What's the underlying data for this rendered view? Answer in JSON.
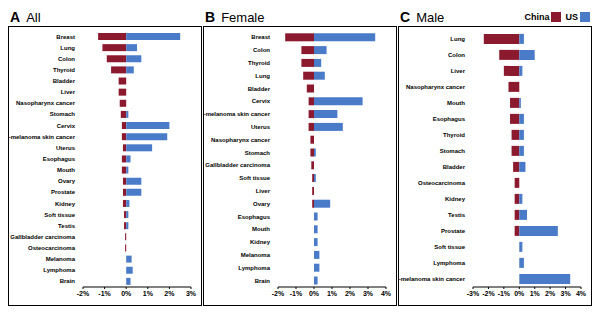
{
  "chart_data": [
    {
      "type": "bar",
      "panel": "A",
      "title": "All",
      "orientation": "horizontal",
      "stacked": true,
      "categories": [
        "Breast",
        "Lung",
        "Colon",
        "Thyroid",
        "Bladder",
        "Liver",
        "Nasopharynx cancer",
        "Stomach",
        "Cervix",
        "non-melanoma skin cancer",
        "Uterus",
        "Esophagus",
        "Mouth",
        "Ovary",
        "Prostate",
        "Kidney",
        "Soft tissue",
        "Testis",
        "Gallbladder carcinoma",
        "Osteocarcinoma",
        "Melanoma",
        "Lymphoma",
        "Brain"
      ],
      "series": [
        {
          "name": "China",
          "color": "#8b1a2e",
          "values": [
            -1.3,
            -1.1,
            -0.9,
            -0.7,
            -0.35,
            -0.35,
            -0.3,
            -0.25,
            -0.2,
            -0.2,
            -0.15,
            -0.2,
            -0.2,
            -0.15,
            -0.15,
            -0.15,
            -0.1,
            -0.1,
            -0.05,
            -0.05,
            0,
            0,
            0
          ]
        },
        {
          "name": "US",
          "color": "#4a7bc8",
          "values": [
            2.5,
            0.5,
            0.7,
            0.35,
            0,
            0,
            0,
            0.1,
            2.0,
            1.9,
            1.2,
            0.2,
            0.1,
            0.7,
            0.7,
            0.15,
            0.1,
            0.1,
            0,
            0,
            0.25,
            0.3,
            0.2
          ]
        }
      ],
      "xlim": [
        -2,
        3
      ],
      "xticks": [
        {
          "value": -2,
          "label": "-2%"
        },
        {
          "value": -1,
          "label": "-1%"
        },
        {
          "value": 0,
          "label": "0%"
        },
        {
          "value": 1,
          "label": "1%"
        },
        {
          "value": 2,
          "label": "2%"
        },
        {
          "value": 3,
          "label": "3%"
        }
      ]
    },
    {
      "type": "bar",
      "panel": "B",
      "title": "Female",
      "orientation": "horizontal",
      "stacked": true,
      "categories": [
        "Breast",
        "Colon",
        "Thyroid",
        "Lung",
        "Bladder",
        "Cervix",
        "non-melanoma skin cancer",
        "Uterus",
        "Nasopharynx cancer",
        "Stomach",
        "Gallbladder carcinoma",
        "Soft tissue",
        "Liver",
        "Ovary",
        "Esophagus",
        "Mouth",
        "Kidney",
        "Melanoma",
        "Lymphoma",
        "Brain"
      ],
      "series": [
        {
          "name": "China",
          "color": "#8b1a2e",
          "values": [
            -1.6,
            -0.7,
            -0.7,
            -0.6,
            -0.4,
            -0.3,
            -0.3,
            -0.3,
            -0.2,
            -0.2,
            -0.15,
            -0.1,
            -0.1,
            -0.1,
            0,
            0,
            0,
            0,
            0,
            0
          ]
        },
        {
          "name": "US",
          "color": "#4a7bc8",
          "values": [
            3.4,
            0.7,
            0.4,
            0.6,
            0,
            2.7,
            1.3,
            1.6,
            0,
            0.1,
            0,
            0.1,
            0,
            0.9,
            0.2,
            0.2,
            0.2,
            0.3,
            0.3,
            0.2
          ]
        }
      ],
      "xlim": [
        -2,
        4
      ],
      "xticks": [
        {
          "value": -2,
          "label": "-2%"
        },
        {
          "value": -1,
          "label": "-1%"
        },
        {
          "value": 0,
          "label": "0%"
        },
        {
          "value": 1,
          "label": "1%"
        },
        {
          "value": 2,
          "label": "2%"
        },
        {
          "value": 3,
          "label": "3%"
        },
        {
          "value": 4,
          "label": "4%"
        }
      ]
    },
    {
      "type": "bar",
      "panel": "C",
      "title": "Male",
      "orientation": "horizontal",
      "stacked": true,
      "legend": "upper right",
      "categories": [
        "Lung",
        "Colon",
        "Liver",
        "Nasopharynx cancer",
        "Mouth",
        "Esophagus",
        "Thyroid",
        "Stomach",
        "Bladder",
        "Osteocarcinoma",
        "Kidney",
        "Testis",
        "Prostate",
        "Soft tissue",
        "Lymphoma",
        "non-melanoma skin cancer"
      ],
      "series": [
        {
          "name": "China",
          "color": "#8b1a2e",
          "values": [
            -2.3,
            -1.3,
            -1.0,
            -0.7,
            -0.6,
            -0.6,
            -0.5,
            -0.5,
            -0.4,
            -0.3,
            -0.3,
            -0.3,
            -0.3,
            0,
            0,
            0
          ]
        },
        {
          "name": "US",
          "color": "#4a7bc8",
          "values": [
            0.3,
            1.0,
            0.2,
            0,
            0.1,
            0.3,
            0.3,
            0.3,
            0.4,
            0,
            0.2,
            0.5,
            2.5,
            0.2,
            0.3,
            3.3
          ]
        }
      ],
      "xlim": [
        -3,
        4
      ],
      "xticks": [
        {
          "value": -3,
          "label": "-3%"
        },
        {
          "value": -2,
          "label": "-2%"
        },
        {
          "value": -1,
          "label": "-1%"
        },
        {
          "value": 0,
          "label": "0%"
        },
        {
          "value": 1,
          "label": "1%"
        },
        {
          "value": 2,
          "label": "2%"
        },
        {
          "value": 3,
          "label": "3%"
        },
        {
          "value": 4,
          "label": "4%"
        }
      ]
    }
  ]
}
